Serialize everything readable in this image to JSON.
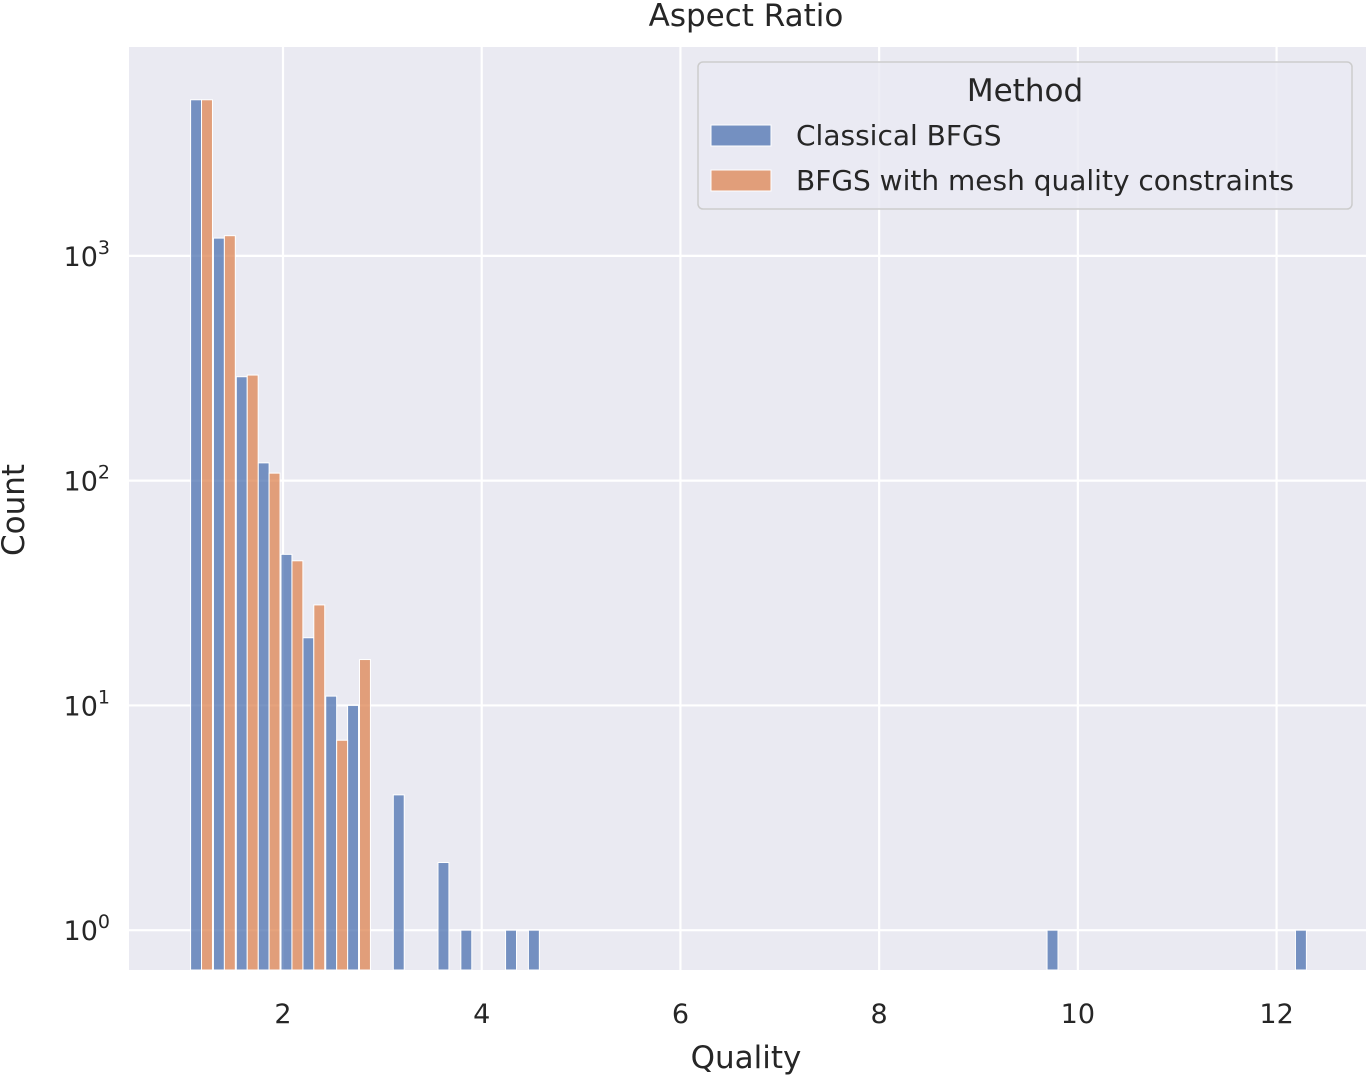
{
  "chart_data": {
    "type": "bar",
    "title": "Aspect Ratio",
    "xlabel": "Quality",
    "ylabel": "Count",
    "xlim": [
      0.45,
      12.9
    ],
    "ylim": [
      0.665,
      8500
    ],
    "yscale": "log",
    "xticks": [
      2,
      4,
      6,
      8,
      10,
      12
    ],
    "xtick_labels": [
      "2",
      "4",
      "6",
      "8",
      "10",
      "12"
    ],
    "yticks": [
      1,
      10,
      100,
      1000
    ],
    "ytick_labels": [
      {
        "base": "10",
        "exp": "0"
      },
      {
        "base": "10",
        "exp": "1"
      },
      {
        "base": "10",
        "exp": "2"
      },
      {
        "base": "10",
        "exp": "3"
      }
    ],
    "grid": true,
    "legend": {
      "title": "Method",
      "position": "top-right",
      "entries": [
        "Classical BFGS",
        "BFGS with mesh quality constraints"
      ]
    },
    "series": [
      {
        "name": "Classical BFGS",
        "color": "#4c72b0",
        "bins": [
          {
            "x": 1.07,
            "w": 0.11,
            "y": 4950
          },
          {
            "x": 1.3,
            "w": 0.11,
            "y": 1200
          },
          {
            "x": 1.53,
            "w": 0.11,
            "y": 290
          },
          {
            "x": 1.75,
            "w": 0.11,
            "y": 120
          },
          {
            "x": 1.98,
            "w": 0.11,
            "y": 47
          },
          {
            "x": 2.2,
            "w": 0.11,
            "y": 20
          },
          {
            "x": 2.43,
            "w": 0.11,
            "y": 11
          },
          {
            "x": 2.65,
            "w": 0.11,
            "y": 10
          },
          {
            "x": 3.11,
            "w": 0.11,
            "y": 4
          },
          {
            "x": 3.56,
            "w": 0.11,
            "y": 2
          },
          {
            "x": 3.79,
            "w": 0.11,
            "y": 1
          },
          {
            "x": 4.24,
            "w": 0.11,
            "y": 1
          },
          {
            "x": 4.47,
            "w": 0.11,
            "y": 1
          },
          {
            "x": 9.69,
            "w": 0.11,
            "y": 1
          },
          {
            "x": 12.19,
            "w": 0.11,
            "y": 1
          }
        ]
      },
      {
        "name": "BFGS with mesh quality constraints",
        "color": "#dd8452",
        "bins": [
          {
            "x": 1.18,
            "w": 0.11,
            "y": 4950
          },
          {
            "x": 1.41,
            "w": 0.11,
            "y": 1230
          },
          {
            "x": 1.64,
            "w": 0.11,
            "y": 295
          },
          {
            "x": 1.86,
            "w": 0.11,
            "y": 108
          },
          {
            "x": 2.09,
            "w": 0.11,
            "y": 44
          },
          {
            "x": 2.31,
            "w": 0.11,
            "y": 28
          },
          {
            "x": 2.54,
            "w": 0.11,
            "y": 7
          },
          {
            "x": 2.77,
            "w": 0.11,
            "y": 16
          }
        ]
      }
    ]
  }
}
